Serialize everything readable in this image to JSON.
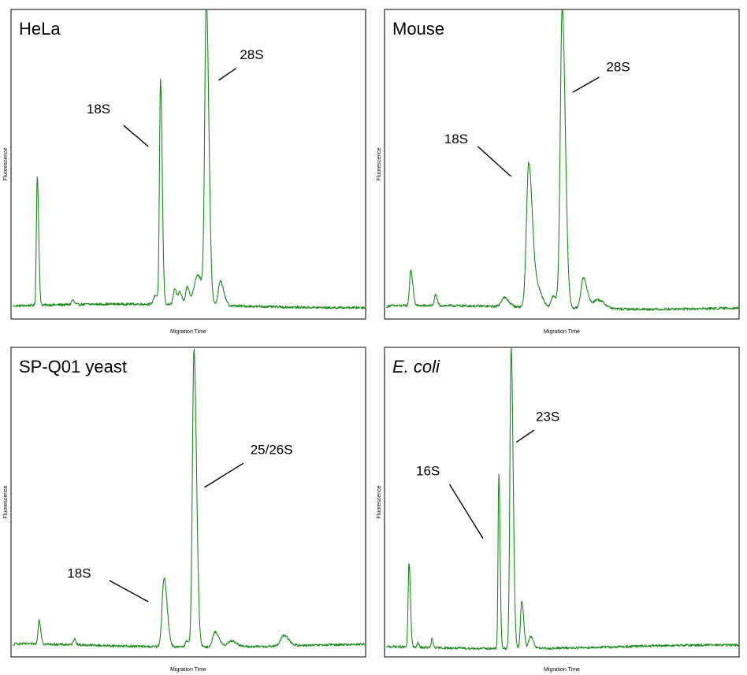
{
  "chart_data": [
    {
      "type": "line",
      "title": "HeLa",
      "xlabel": "Migration Time",
      "ylabel": "Fluorescence",
      "color": "#1a8a1a",
      "ylim": [
        0,
        100
      ],
      "baseline": 2,
      "peaks": [
        {
          "x": 0.07,
          "h": 43,
          "w": 0.0025,
          "ann": {
            "text": "",
            "tx": 0,
            "ty": 0,
            "lx1": 0,
            "ly1": 0,
            "lx2": 0,
            "ly2": 0
          }
        },
        {
          "x": 0.42,
          "h": 74,
          "w": 0.003
        },
        {
          "x": 0.55,
          "h": 99,
          "w": 0.0045
        },
        {
          "x": 0.405,
          "h": 3,
          "w": 0.005
        },
        {
          "x": 0.46,
          "h": 5,
          "w": 0.004
        },
        {
          "x": 0.475,
          "h": 4,
          "w": 0.004
        },
        {
          "x": 0.495,
          "h": 6,
          "w": 0.004
        },
        {
          "x": 0.525,
          "h": 10,
          "w": 0.01
        },
        {
          "x": 0.59,
          "h": 8,
          "w": 0.006
        },
        {
          "x": 0.17,
          "h": 1.5,
          "w": 0.003
        }
      ],
      "annotations": [
        {
          "text": "18S",
          "tx": 0.21,
          "ty": 66,
          "x1": 0.315,
          "y1": 62,
          "x2": 0.385,
          "y2": 55
        },
        {
          "text": "28S",
          "tx": 0.645,
          "ty": 84,
          "x1": 0.635,
          "y1": 81,
          "x2": 0.585,
          "y2": 77
        }
      ]
    },
    {
      "type": "line",
      "title": "Mouse",
      "xlabel": "Migration Time",
      "ylabel": "Fluorescence",
      "color": "#1a8a1a",
      "ylim": [
        0,
        100
      ],
      "baseline": 1.5,
      "peaks": [
        {
          "x": 0.07,
          "h": 12,
          "w": 0.0035
        },
        {
          "x": 0.14,
          "h": 3.5,
          "w": 0.003
        },
        {
          "x": 0.335,
          "h": 3,
          "w": 0.008
        },
        {
          "x": 0.405,
          "h": 48,
          "w": 0.0065
        },
        {
          "x": 0.5,
          "h": 100,
          "w": 0.0055
        },
        {
          "x": 0.43,
          "h": 6,
          "w": 0.008
        },
        {
          "x": 0.475,
          "h": 4,
          "w": 0.006
        },
        {
          "x": 0.56,
          "h": 10,
          "w": 0.007
        },
        {
          "x": 0.6,
          "h": 3,
          "w": 0.012
        }
      ],
      "annotations": [
        {
          "text": "18S",
          "tx": 0.165,
          "ty": 56,
          "x1": 0.26,
          "y1": 55,
          "x2": 0.355,
          "y2": 45
        },
        {
          "text": "28S",
          "tx": 0.625,
          "ty": 80,
          "x1": 0.605,
          "y1": 78,
          "x2": 0.53,
          "y2": 73
        }
      ]
    },
    {
      "type": "line",
      "title": "SP-Q01 yeast",
      "xlabel": "Migration Time",
      "ylabel": "Fluorescence",
      "color": "#1a8a1a",
      "ylim": [
        0,
        100
      ],
      "baseline": 1.5,
      "peaks": [
        {
          "x": 0.075,
          "h": 8,
          "w": 0.003
        },
        {
          "x": 0.175,
          "h": 2,
          "w": 0.003
        },
        {
          "x": 0.43,
          "h": 23,
          "w": 0.0055
        },
        {
          "x": 0.515,
          "h": 99,
          "w": 0.0045
        },
        {
          "x": 0.495,
          "h": 2,
          "w": 0.004
        },
        {
          "x": 0.575,
          "h": 5,
          "w": 0.007
        },
        {
          "x": 0.62,
          "h": 2,
          "w": 0.01
        },
        {
          "x": 0.77,
          "h": 3.5,
          "w": 0.009
        }
      ],
      "annotations": [
        {
          "text": "18S",
          "tx": 0.155,
          "ty": 24,
          "x1": 0.275,
          "y1": 23,
          "x2": 0.385,
          "y2": 16
        },
        {
          "text": "25/26S",
          "tx": 0.675,
          "ty": 65,
          "x1": 0.655,
          "y1": 62,
          "x2": 0.545,
          "y2": 54
        }
      ]
    },
    {
      "type": "line",
      "title": "E. coli",
      "xlabel": "Migration Time",
      "ylabel": "Fluorescence",
      "color": "#1a8a1a",
      "ylim": [
        0,
        100
      ],
      "baseline": 1,
      "peaks": [
        {
          "x": 0.065,
          "h": 28,
          "w": 0.0025
        },
        {
          "x": 0.13,
          "h": 3,
          "w": 0.002
        },
        {
          "x": 0.09,
          "h": 1.5,
          "w": 0.002
        },
        {
          "x": 0.32,
          "h": 58,
          "w": 0.0022
        },
        {
          "x": 0.355,
          "h": 100,
          "w": 0.0035
        },
        {
          "x": 0.385,
          "h": 16,
          "w": 0.0035
        },
        {
          "x": 0.41,
          "h": 4,
          "w": 0.005
        }
      ],
      "annotations": [
        {
          "text": "16S",
          "tx": 0.085,
          "ty": 58,
          "x1": 0.18,
          "y1": 55,
          "x2": 0.275,
          "y2": 37
        },
        {
          "text": "23S",
          "tx": 0.425,
          "ty": 76,
          "x1": 0.42,
          "y1": 73,
          "x2": 0.37,
          "y2": 69
        }
      ]
    }
  ]
}
